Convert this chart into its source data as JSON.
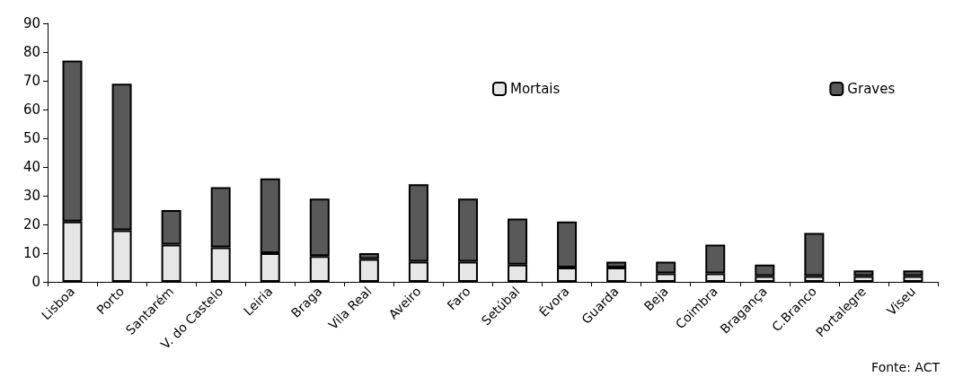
{
  "chart_data": {
    "type": "bar",
    "stacked": true,
    "categories": [
      "Lisboa",
      "Porto",
      "Santarém",
      "V. do Castelo",
      "Leiria",
      "Braga",
      "Vila Real",
      "Aveiro",
      "Faro",
      "Setúbal",
      "Évora",
      "Guarda",
      "Beja",
      "Coimbra",
      "Bragança",
      "C.Branco",
      "Portalegre",
      "Viseu"
    ],
    "series": [
      {
        "name": "Mortais",
        "color": "#e6e6e6",
        "values": [
          21,
          18,
          13,
          12,
          10,
          9,
          8,
          7,
          7,
          6,
          5,
          5,
          3,
          3,
          2,
          2,
          2,
          2
        ]
      },
      {
        "name": "Graves",
        "color": "#595959",
        "values": [
          56,
          51,
          12,
          21,
          26,
          20,
          2,
          27,
          22,
          16,
          16,
          2,
          4,
          10,
          4,
          15,
          2,
          2
        ]
      }
    ],
    "ylim": [
      0,
      90
    ],
    "yticks": [
      0,
      10,
      20,
      30,
      40,
      50,
      60,
      70,
      80,
      90
    ],
    "grid": false,
    "legend": "top right",
    "annotations": [
      "Fonte: ACT"
    ]
  }
}
